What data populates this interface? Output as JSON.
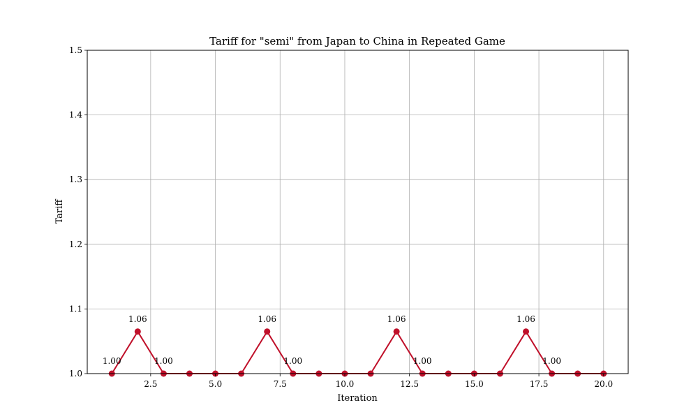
{
  "chart_data": {
    "type": "line",
    "title": "Tariff for \"semi\" from Japan to China in Repeated Game",
    "xlabel": "Iteration",
    "ylabel": "Tariff",
    "xlim": [
      0.05,
      20.95
    ],
    "ylim": [
      1.0,
      1.5
    ],
    "xticks": [
      2.5,
      5.0,
      7.5,
      10.0,
      12.5,
      15.0,
      17.5,
      20.0
    ],
    "xtick_labels": [
      "2.5",
      "5.0",
      "7.5",
      "10.0",
      "12.5",
      "15.0",
      "17.5",
      "20.0"
    ],
    "yticks": [
      1.0,
      1.1,
      1.2,
      1.3,
      1.4,
      1.5
    ],
    "ytick_labels": [
      "1.0",
      "1.1",
      "1.2",
      "1.3",
      "1.4",
      "1.5"
    ],
    "grid": true,
    "series": [
      {
        "color": "#c0102a",
        "marker": "circle",
        "x": [
          1,
          2,
          3,
          4,
          5,
          6,
          7,
          8,
          9,
          10,
          11,
          12,
          13,
          14,
          15,
          16,
          17,
          18,
          19,
          20
        ],
        "y": [
          1.0,
          1.065,
          1.0,
          1.0,
          1.0,
          1.0,
          1.065,
          1.0,
          1.0,
          1.0,
          1.0,
          1.065,
          1.0,
          1.0,
          1.0,
          1.0,
          1.065,
          1.0,
          1.0,
          1.0
        ]
      }
    ],
    "annotations": [
      {
        "x": 1,
        "y": 1.0,
        "text": "1.00"
      },
      {
        "x": 2,
        "y": 1.065,
        "text": "1.06"
      },
      {
        "x": 3,
        "y": 1.0,
        "text": "1.00"
      },
      {
        "x": 7,
        "y": 1.065,
        "text": "1.06"
      },
      {
        "x": 8,
        "y": 1.0,
        "text": "1.00"
      },
      {
        "x": 12,
        "y": 1.065,
        "text": "1.06"
      },
      {
        "x": 13,
        "y": 1.0,
        "text": "1.00"
      },
      {
        "x": 17,
        "y": 1.065,
        "text": "1.06"
      },
      {
        "x": 18,
        "y": 1.0,
        "text": "1.00"
      }
    ],
    "colors": {
      "line": "#c0102a",
      "grid": "#b0b0b0",
      "axis": "#000000"
    }
  }
}
